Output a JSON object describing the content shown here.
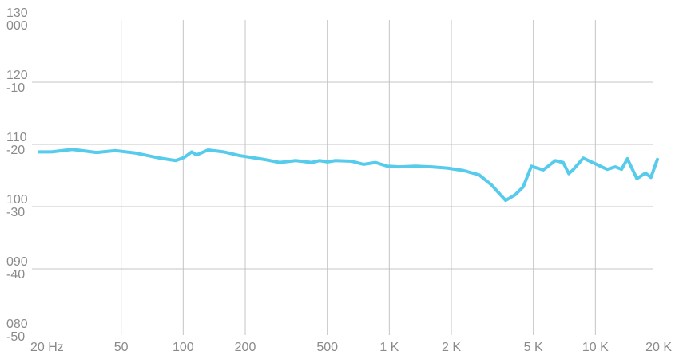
{
  "chart_data": {
    "type": "line",
    "xscale": "log",
    "xlim": [
      20,
      20000
    ],
    "xticks": [
      {
        "value": 20,
        "label": "20 Hz"
      },
      50,
      100,
      200,
      500,
      {
        "value": 1000,
        "label": "1 K"
      },
      {
        "value": 2000,
        "label": "2 K"
      },
      {
        "value": 5000,
        "label": "5 K"
      },
      {
        "value": 10000,
        "label": "10 K"
      },
      {
        "value": 20000,
        "label": "20 K"
      }
    ],
    "ylim": [
      80,
      130
    ],
    "yticks": [
      {
        "value": 80,
        "label": "080"
      },
      {
        "value": 90,
        "label": "090"
      },
      100,
      110,
      120,
      130
    ],
    "y2lim": [
      -50,
      0
    ],
    "y2ticks": [
      -50,
      -40,
      -30,
      -20,
      -10,
      {
        "value": 0,
        "label": "000"
      }
    ],
    "grid": true,
    "color": "#56cbec",
    "x": [
      20,
      23,
      29,
      38,
      47,
      59,
      77,
      92,
      101,
      110,
      116,
      132,
      157,
      188,
      246,
      294,
      351,
      420,
      458,
      501,
      548,
      656,
      750,
      857,
      980,
      1120,
      1340,
      1600,
      1910,
      2290,
      2730,
      3130,
      3420,
      3670,
      4080,
      4470,
      4890,
      5590,
      6390,
      6980,
      7430,
      7830,
      8730,
      9980,
      11400,
      12500,
      13400,
      14300,
      15900,
      17500,
      18600,
      20000
    ],
    "values": [
      108.8,
      108.8,
      109.2,
      108.7,
      109.0,
      108.6,
      107.8,
      107.4,
      107.9,
      108.8,
      108.3,
      109.1,
      108.8,
      108.2,
      107.6,
      107.1,
      107.4,
      107.1,
      107.4,
      107.2,
      107.4,
      107.3,
      106.8,
      107.1,
      106.5,
      106.4,
      106.5,
      106.4,
      106.2,
      105.8,
      105.1,
      103.5,
      102.1,
      101.0,
      101.9,
      103.2,
      106.5,
      105.9,
      107.4,
      107.1,
      105.3,
      106.0,
      107.8,
      106.9,
      106.0,
      106.4,
      106.0,
      107.7,
      104.5,
      105.4,
      104.7,
      107.6
    ]
  }
}
